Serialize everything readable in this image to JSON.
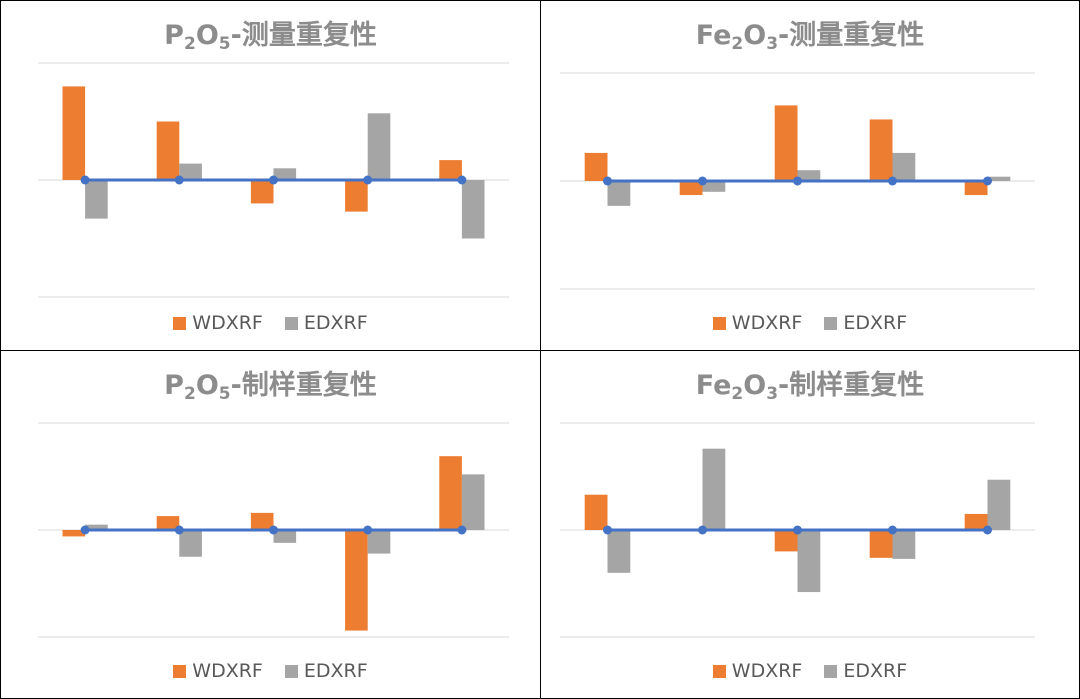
{
  "colors": {
    "wdxrf": "#ed7d31",
    "edxrf": "#a5a5a5",
    "line": "#4472c4",
    "grid": "#d9d9d9"
  },
  "chart_data": [
    {
      "type": "bar",
      "title_main": "P",
      "title_sub1": "2",
      "title_mid": "O",
      "title_sub2": "5",
      "title_tail": "-测量重复性",
      "ylim": [
        -1,
        1
      ],
      "categories": [
        "",
        "",
        "",
        "",
        ""
      ],
      "series": [
        {
          "name": "WDXRF",
          "values": [
            0.8,
            0.5,
            -0.2,
            -0.27,
            0.17
          ]
        },
        {
          "name": "EDXRF",
          "values": [
            -0.33,
            0.14,
            0.1,
            0.57,
            -0.5
          ]
        }
      ],
      "baseline": [
        0,
        0,
        0,
        0,
        0
      ],
      "legend": "bottom"
    },
    {
      "type": "bar",
      "title_main": "Fe",
      "title_sub1": "2",
      "title_mid": "O",
      "title_sub2": "3",
      "title_tail": "-测量重复性",
      "ylim": [
        -1,
        1
      ],
      "categories": [
        "",
        "",
        "",
        "",
        ""
      ],
      "series": [
        {
          "name": "WDXRF",
          "values": [
            0.26,
            -0.13,
            0.7,
            0.57,
            -0.13
          ]
        },
        {
          "name": "EDXRF",
          "values": [
            -0.23,
            -0.1,
            0.1,
            0.26,
            0.04
          ]
        }
      ],
      "baseline": [
        0,
        0,
        0,
        0,
        0
      ],
      "legend": "bottom"
    },
    {
      "type": "bar",
      "title_main": "P",
      "title_sub1": "2",
      "title_mid": "O",
      "title_sub2": "5",
      "title_tail": "-制样重复性",
      "ylim": [
        -1,
        1
      ],
      "categories": [
        "",
        "",
        "",
        "",
        ""
      ],
      "series": [
        {
          "name": "WDXRF",
          "values": [
            -0.06,
            0.13,
            0.16,
            -0.94,
            0.69
          ]
        },
        {
          "name": "EDXRF",
          "values": [
            0.05,
            -0.25,
            -0.12,
            -0.22,
            0.52
          ]
        }
      ],
      "baseline": [
        0,
        0,
        0,
        0,
        0
      ],
      "legend": "bottom"
    },
    {
      "type": "bar",
      "title_main": "Fe",
      "title_sub1": "2",
      "title_mid": "O",
      "title_sub2": "3",
      "title_tail": "-制样重复性",
      "ylim": [
        -1,
        1
      ],
      "categories": [
        "",
        "",
        "",
        "",
        ""
      ],
      "series": [
        {
          "name": "WDXRF",
          "values": [
            0.33,
            -0.01,
            -0.2,
            -0.26,
            0.15
          ]
        },
        {
          "name": "EDXRF",
          "values": [
            -0.4,
            0.76,
            -0.58,
            -0.27,
            0.47
          ]
        }
      ],
      "baseline": [
        0,
        0,
        0,
        0,
        0
      ],
      "legend": "bottom"
    }
  ]
}
